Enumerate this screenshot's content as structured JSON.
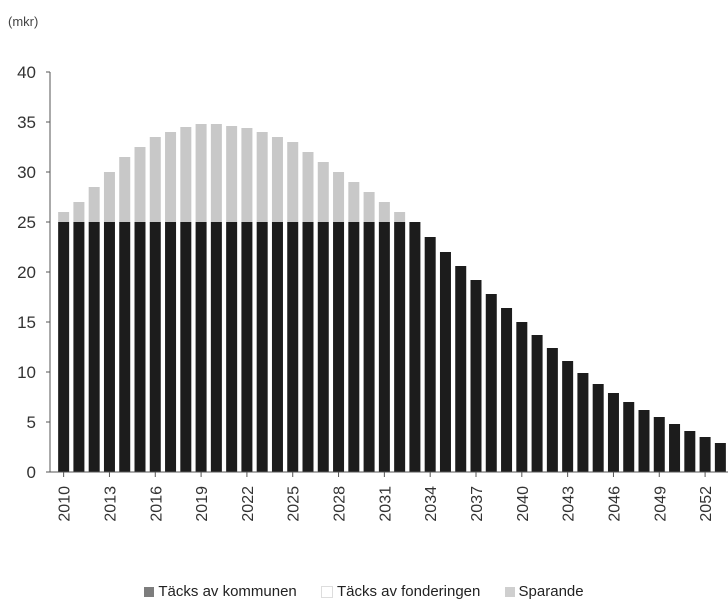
{
  "chart_data": {
    "type": "bar",
    "stacked": true,
    "unit_label": "(mkr)",
    "title": "",
    "xlabel": "",
    "ylabel": "",
    "ylim": [
      0,
      40
    ],
    "yticks": [
      0,
      5,
      10,
      15,
      20,
      25,
      30,
      35,
      40
    ],
    "grid": false,
    "legend_position": "bottom",
    "x": [
      2010,
      2011,
      2012,
      2013,
      2014,
      2015,
      2016,
      2017,
      2018,
      2019,
      2020,
      2021,
      2022,
      2023,
      2024,
      2025,
      2026,
      2027,
      2028,
      2029,
      2030,
      2031,
      2032,
      2033,
      2034,
      2035,
      2036,
      2037,
      2038,
      2039,
      2040,
      2041,
      2042,
      2043,
      2044,
      2045,
      2046,
      2047,
      2048,
      2049,
      2050,
      2051,
      2052,
      2053
    ],
    "xtick_labels": [
      "2010",
      "2013",
      "2016",
      "2019",
      "2022",
      "2025",
      "2028",
      "2031",
      "2034",
      "2037",
      "2040",
      "2043",
      "2046",
      "2049",
      "2052"
    ],
    "series": [
      {
        "name": "Täcks av kommunen",
        "color": "#1c1c1c",
        "values": [
          25,
          25,
          25,
          25,
          25,
          25,
          25,
          25,
          25,
          25,
          25,
          25,
          25,
          25,
          25,
          25,
          25,
          25,
          25,
          25,
          25,
          25,
          25,
          25,
          23.5,
          22,
          20.6,
          19.2,
          17.8,
          16.4,
          15,
          13.7,
          12.4,
          11.1,
          9.9,
          8.8,
          7.9,
          7,
          6.2,
          5.5,
          4.8,
          4.1,
          3.5,
          2.9
        ]
      },
      {
        "name": "Täcks av fonderingen",
        "color": "#c8c8c8",
        "values": [
          1,
          2,
          3.5,
          5,
          6.5,
          7.5,
          8.5,
          9,
          9.5,
          9.8,
          9.8,
          9.6,
          9.4,
          9,
          8.5,
          8,
          7,
          6,
          5,
          4,
          3,
          2,
          1,
          0,
          0,
          0,
          0,
          0,
          0,
          0,
          0,
          0,
          0,
          0,
          0,
          0,
          0,
          0,
          0,
          0,
          0,
          0,
          0,
          0
        ]
      },
      {
        "name": "Sparande",
        "color": "#7a7a7a",
        "values": [
          0,
          0,
          0,
          0,
          0,
          0,
          0,
          0,
          0,
          0,
          0,
          0,
          0,
          0,
          0,
          0,
          0,
          0,
          0,
          0,
          0,
          0,
          0,
          0,
          0,
          0,
          0,
          0,
          0,
          0,
          0,
          0,
          0,
          0,
          0,
          0,
          0,
          0,
          0,
          0,
          0,
          0,
          0,
          0
        ]
      }
    ]
  },
  "legend": {
    "items": [
      {
        "label": "Täcks av kommunen",
        "color": "#7d7d7d"
      },
      {
        "label": "Täcks av fonderingen",
        "color": "#ffffff"
      },
      {
        "label": "Sparande",
        "color": "#cfcfcf"
      }
    ]
  }
}
